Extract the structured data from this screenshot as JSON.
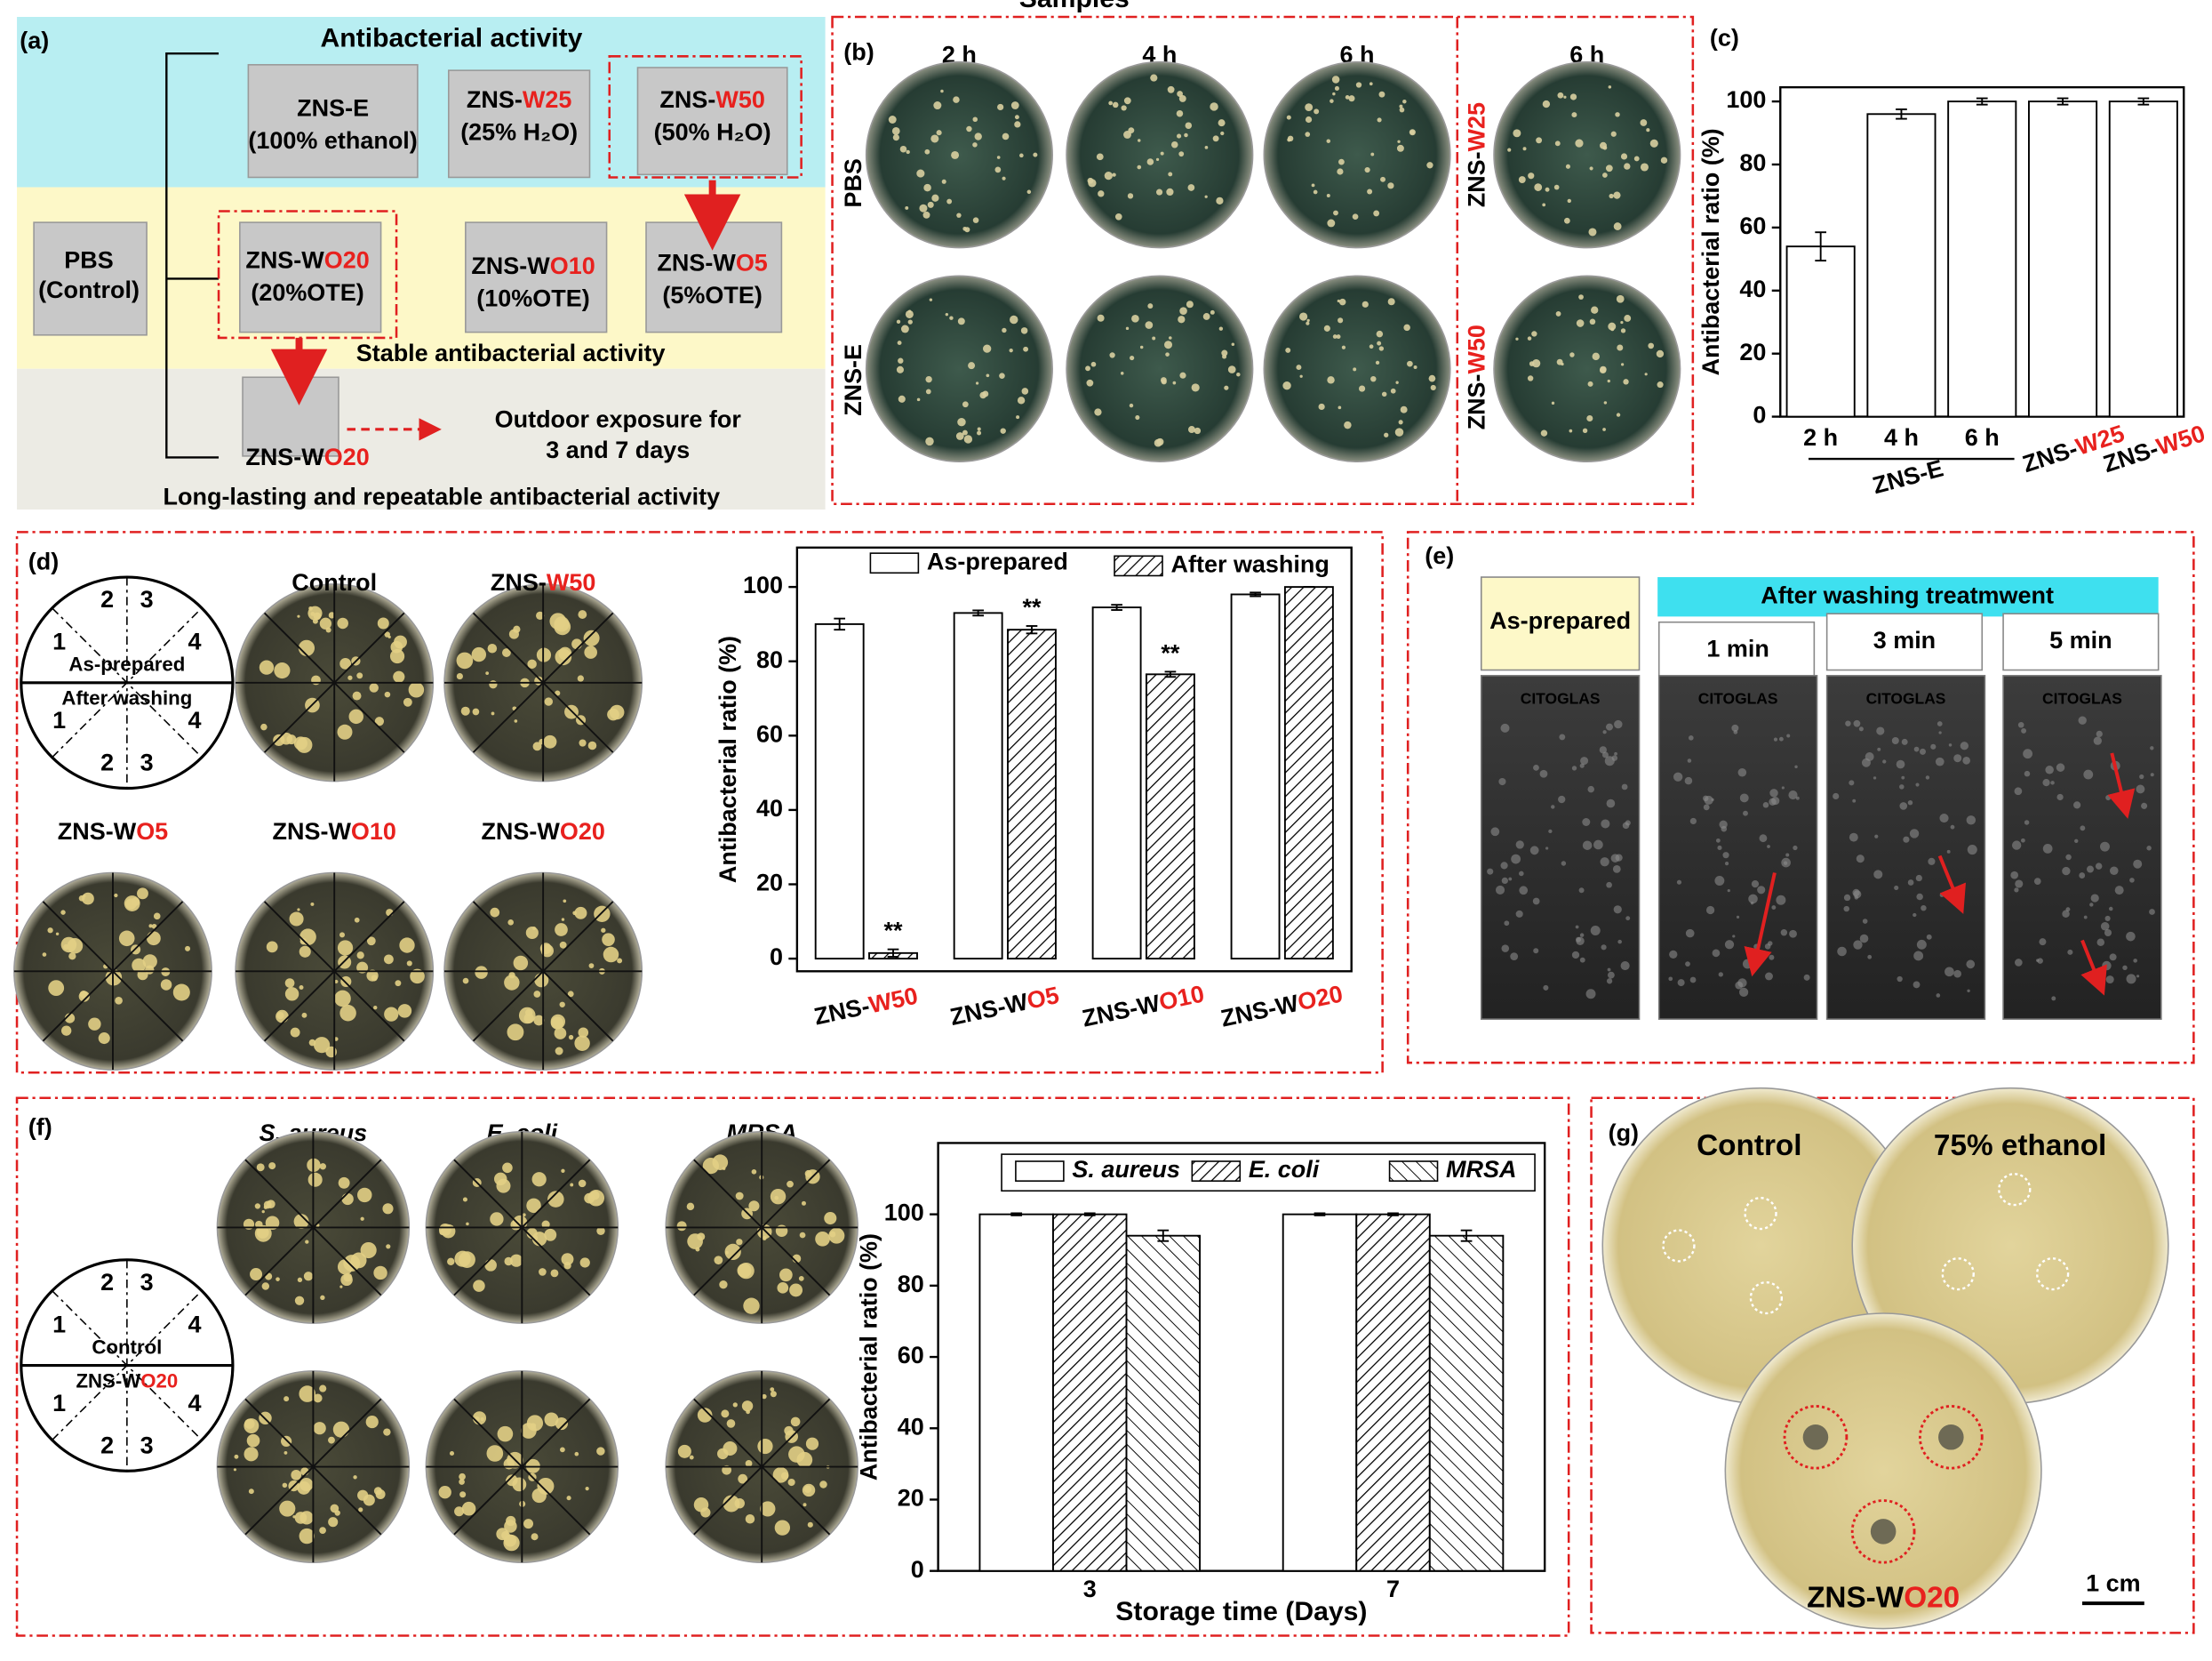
{
  "panel_a": {
    "label": "(a)",
    "title": "Antibacterial activity",
    "control": [
      "PBS",
      "(Control)"
    ],
    "samples": [
      {
        "name": [
          "ZNS-E"
        ],
        "note": "(100% ethanol)"
      },
      {
        "name": [
          "ZNS-",
          "W25"
        ],
        "note": "(25% H₂O)"
      },
      {
        "name": [
          "ZNS-",
          "W50"
        ],
        "note": "(50% H₂O)"
      },
      {
        "name": [
          "ZNS-W",
          "O20"
        ],
        "note": "(20%OTE)"
      },
      {
        "name": [
          "ZNS-W",
          "O10"
        ],
        "note": "(10%OTE)"
      },
      {
        "name": [
          "ZNS-W",
          "O5"
        ],
        "note": "(5%OTE)"
      }
    ],
    "stable": "Stable antibacterial activity",
    "outdoor_sample": [
      "ZNS-W",
      "O20"
    ],
    "outdoor": [
      "Outdoor  exposure for",
      "3 and 7 days"
    ],
    "long": "Long-lasting and repeatable antibacterial activity"
  },
  "panel_b": {
    "label": "(b)",
    "times": [
      "2 h",
      "4 h",
      "6 h"
    ],
    "time_right": "6 h",
    "rows": [
      [
        "PBS"
      ],
      [
        "ZNS-E"
      ]
    ],
    "right_rows": [
      [
        "ZNS-",
        "W25"
      ],
      [
        "ZNS-",
        "W50"
      ]
    ]
  },
  "panel_c": {
    "label": "(c)"
  },
  "panel_d": {
    "label": "(d)",
    "scheme": {
      "top_numbers": [
        "1",
        "2",
        "3",
        "4"
      ],
      "top": "As-prepared",
      "bottom": "After washing",
      "bottom_numbers": [
        "1",
        "2",
        "3",
        "4"
      ]
    },
    "plates": [
      [
        "Control"
      ],
      [
        "ZNS-",
        "W50"
      ],
      [
        "ZNS-W",
        "O5"
      ],
      [
        "ZNS-W",
        "O10"
      ],
      [
        "ZNS-W",
        "O20"
      ]
    ]
  },
  "panel_e": {
    "label": "(e)",
    "first": "As-prepared",
    "header": "After washing treatmwent",
    "times": [
      "1 min",
      "3 min",
      "5 min"
    ],
    "slide_text": [
      "CITOGLAS",
      "CITOGLAS",
      "CITOGLAS",
      "CITOGLAS"
    ]
  },
  "panel_f": {
    "label": "(f)",
    "species": [
      "S. aureus",
      "E. coli",
      "MRSA"
    ],
    "scheme": {
      "top_numbers": [
        "1",
        "2",
        "3",
        "4"
      ],
      "top": "Control",
      "bottom": [
        "ZNS-W",
        "O20"
      ],
      "bottom_numbers": [
        "1",
        "2",
        "3",
        "4"
      ]
    }
  },
  "panel_g": {
    "label": "(g)",
    "plates": [
      [
        "Control"
      ],
      [
        "75% ethanol"
      ],
      [
        "ZNS-W",
        "O20"
      ]
    ],
    "scale": "1 cm"
  },
  "chart_data": [
    {
      "type": "bar",
      "categories": [
        "2 h",
        "4 h",
        "6 h",
        [
          "ZNS-",
          "W25"
        ],
        [
          "ZNS-",
          "W50"
        ]
      ],
      "group_label": "ZNS-E",
      "values": [
        54,
        96,
        100,
        100,
        100
      ],
      "errors": [
        4.5,
        1.5,
        1,
        1,
        1
      ],
      "color": "#ffffff",
      "ylim": [
        0,
        104.5
      ],
      "yticks": [
        0,
        20,
        40,
        60,
        80,
        100
      ],
      "ylabel": "Antibacterial ratio (%)"
    },
    {
      "type": "bar",
      "categories": [
        [
          "ZNS-",
          "W50"
        ],
        [
          "ZNS-W",
          "O5"
        ],
        [
          "ZNS-W",
          "O10"
        ],
        [
          "ZNS-W",
          "O20"
        ]
      ],
      "series": [
        {
          "name": "As-prepared",
          "color": "#ffffff",
          "values": [
            90,
            93,
            94.5,
            98
          ],
          "errors": [
            1.5,
            0.7,
            0.7,
            0.5
          ]
        },
        {
          "name": "After washing",
          "color": "hatch",
          "values": [
            1.5,
            88.5,
            76.5,
            100
          ],
          "errors": [
            1,
            1,
            0.7,
            0
          ],
          "significance": [
            "**",
            "**",
            "**",
            null
          ]
        }
      ],
      "ylim": [
        -3.4,
        110.6
      ],
      "yticks": [
        0,
        20,
        40,
        60,
        80,
        100
      ],
      "ylabel": "Antibacterial ratio (%)",
      "xlabel": "Samples"
    },
    {
      "type": "bar",
      "categories": [
        "3",
        "7"
      ],
      "series": [
        {
          "name": "S. aureus",
          "color": "#ffffff",
          "values": [
            100,
            100
          ],
          "errors": [
            0.3,
            0.3
          ]
        },
        {
          "name": "E. coli",
          "color": "hatch",
          "values": [
            100,
            100
          ],
          "errors": [
            0.3,
            0.3
          ]
        },
        {
          "name": "MRSA",
          "color": "back",
          "values": [
            94,
            94
          ],
          "errors": [
            1.5,
            1.5
          ]
        }
      ],
      "ylim": [
        0,
        120
      ],
      "yticks": [
        0,
        20,
        40,
        60,
        80,
        100
      ],
      "ylabel": "Antibacterial ratio (%)",
      "xlabel": "Storage time (Days)"
    }
  ]
}
